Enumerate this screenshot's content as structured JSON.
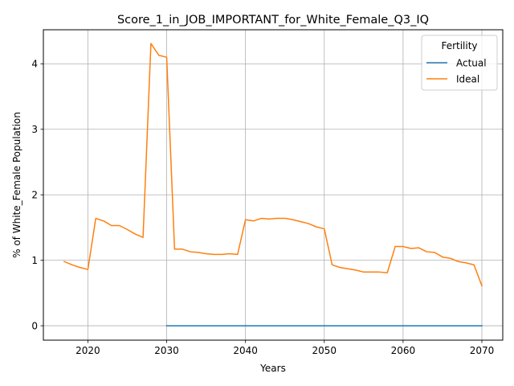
{
  "chart_data": {
    "type": "line",
    "title": "Score_1_in_JOB_IMPORTANT_for_White_Female_Q3_IQ",
    "xlabel": "Years",
    "ylabel": "% of White_Female Population",
    "xlim": [
      2014.35,
      2072.65
    ],
    "ylim": [
      -0.22,
      4.52
    ],
    "xticks": [
      2020,
      2030,
      2040,
      2050,
      2060,
      2070
    ],
    "yticks": [
      0,
      1,
      2,
      3,
      4
    ],
    "grid": true,
    "legend": {
      "title": "Fertility",
      "position": "top-right",
      "entries": [
        "Actual",
        "Ideal"
      ]
    },
    "series": [
      {
        "name": "Actual",
        "color": "#1f77b4",
        "x": [
          2030,
          2031,
          2032,
          2033,
          2034,
          2035,
          2036,
          2037,
          2038,
          2039,
          2040,
          2041,
          2042,
          2043,
          2044,
          2045,
          2046,
          2047,
          2048,
          2049,
          2050,
          2051,
          2052,
          2053,
          2054,
          2055,
          2056,
          2057,
          2058,
          2059,
          2060,
          2061,
          2062,
          2063,
          2064,
          2065,
          2066,
          2067,
          2068,
          2069,
          2070
        ],
        "y": [
          0,
          0,
          0,
          0,
          0,
          0,
          0,
          0,
          0,
          0,
          0,
          0,
          0,
          0,
          0,
          0,
          0,
          0,
          0,
          0,
          0,
          0,
          0,
          0,
          0,
          0,
          0,
          0,
          0,
          0,
          0,
          0,
          0,
          0,
          0,
          0,
          0,
          0,
          0,
          0,
          0
        ]
      },
      {
        "name": "Ideal",
        "color": "#ff7f0e",
        "x": [
          2017,
          2018,
          2019,
          2020,
          2021,
          2022,
          2023,
          2024,
          2025,
          2026,
          2027,
          2028,
          2029,
          2030,
          2031,
          2032,
          2033,
          2034,
          2035,
          2036,
          2037,
          2038,
          2039,
          2040,
          2041,
          2042,
          2043,
          2044,
          2045,
          2046,
          2047,
          2048,
          2049,
          2050,
          2051,
          2052,
          2053,
          2054,
          2055,
          2056,
          2057,
          2058,
          2059,
          2060,
          2061,
          2062,
          2063,
          2064,
          2065,
          2066,
          2067,
          2068,
          2069,
          2070
        ],
        "y": [
          0.98,
          0.93,
          0.89,
          0.86,
          1.64,
          1.6,
          1.53,
          1.53,
          1.47,
          1.4,
          1.35,
          4.31,
          4.13,
          4.1,
          1.17,
          1.17,
          1.13,
          1.12,
          1.1,
          1.09,
          1.09,
          1.1,
          1.09,
          1.62,
          1.6,
          1.64,
          1.63,
          1.64,
          1.64,
          1.62,
          1.59,
          1.56,
          1.51,
          1.48,
          0.93,
          0.89,
          0.87,
          0.85,
          0.82,
          0.82,
          0.82,
          0.81,
          1.21,
          1.21,
          1.18,
          1.19,
          1.13,
          1.12,
          1.05,
          1.03,
          0.98,
          0.96,
          0.93,
          0.61
        ]
      }
    ]
  }
}
